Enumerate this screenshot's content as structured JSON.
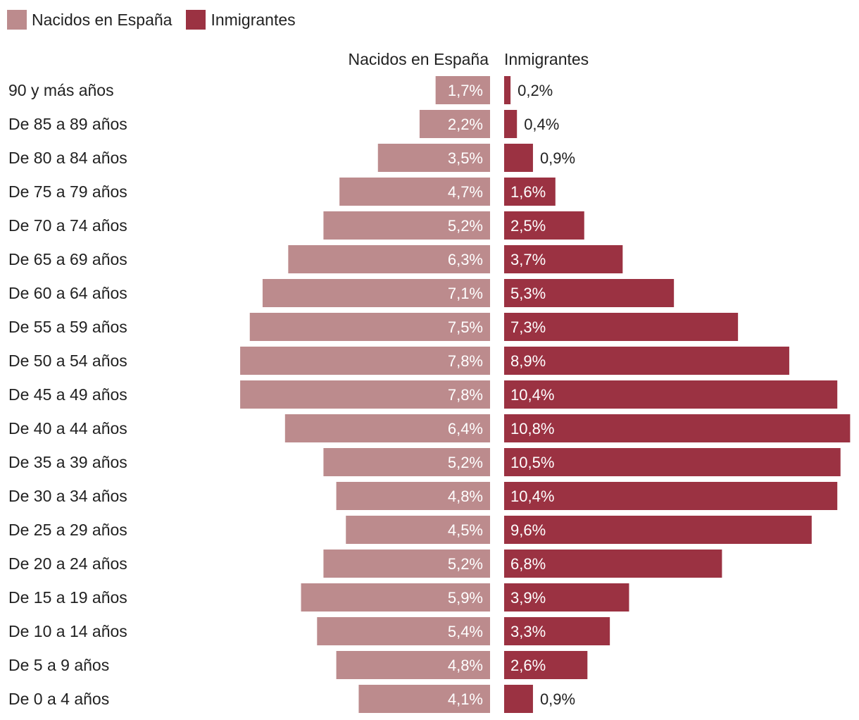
{
  "colors": {
    "nacidos": "#bc8b8d",
    "inmigrantes": "#9b3242"
  },
  "chart_data": {
    "type": "bar",
    "orientation": "horizontal-diverging",
    "legend": [
      {
        "name": "Nacidos en España",
        "color": "#bc8b8d"
      },
      {
        "name": "Inmigrantes",
        "color": "#9b3242"
      }
    ],
    "column_headers": {
      "left": "Nacidos en España",
      "right": "Inmigrantes"
    },
    "categories": [
      "90 y más años",
      "De 85 a 89 años",
      "De 80 a 84 años",
      "De 75 a 79 años",
      "De 70 a 74 años",
      "De 65 a 69 años",
      "De 60 a 64 años",
      "De 55 a 59 años",
      "De 50 a 54 años",
      "De 45 a 49 años",
      "De 40 a 44 años",
      "De 35 a 39 años",
      "De 30 a 34 años",
      "De 25 a 29 años",
      "De 20 a 24 años",
      "De 15 a 19 años",
      "De 10 a 14 años",
      "De 5 a 9 años",
      "De 0 a 4 años"
    ],
    "series": [
      {
        "name": "Nacidos en España",
        "values": [
          1.7,
          2.2,
          3.5,
          4.7,
          5.2,
          6.3,
          7.1,
          7.5,
          7.8,
          7.8,
          6.4,
          5.2,
          4.8,
          4.5,
          5.2,
          5.9,
          5.4,
          4.8,
          4.1
        ],
        "labels": [
          "1,7%",
          "2,2%",
          "3,5%",
          "4,7%",
          "5,2%",
          "6,3%",
          "7,1%",
          "7,5%",
          "7,8%",
          "7,8%",
          "6,4%",
          "5,2%",
          "4,8%",
          "4,5%",
          "5,2%",
          "5,9%",
          "5,4%",
          "4,8%",
          "4,1%"
        ]
      },
      {
        "name": "Inmigrantes",
        "values": [
          0.2,
          0.4,
          0.9,
          1.6,
          2.5,
          3.7,
          5.3,
          7.3,
          8.9,
          10.4,
          10.8,
          10.5,
          10.4,
          9.6,
          6.8,
          3.9,
          3.3,
          2.6,
          0.9
        ],
        "labels": [
          "0,2%",
          "0,4%",
          "0,9%",
          "1,6%",
          "2,5%",
          "3,7%",
          "5,3%",
          "7,3%",
          "8,9%",
          "10,4%",
          "10,8%",
          "10,5%",
          "10,4%",
          "9,6%",
          "6,8%",
          "3,9%",
          "3,3%",
          "2,6%",
          "0,9%"
        ]
      }
    ],
    "unit": "%",
    "grid": false
  }
}
